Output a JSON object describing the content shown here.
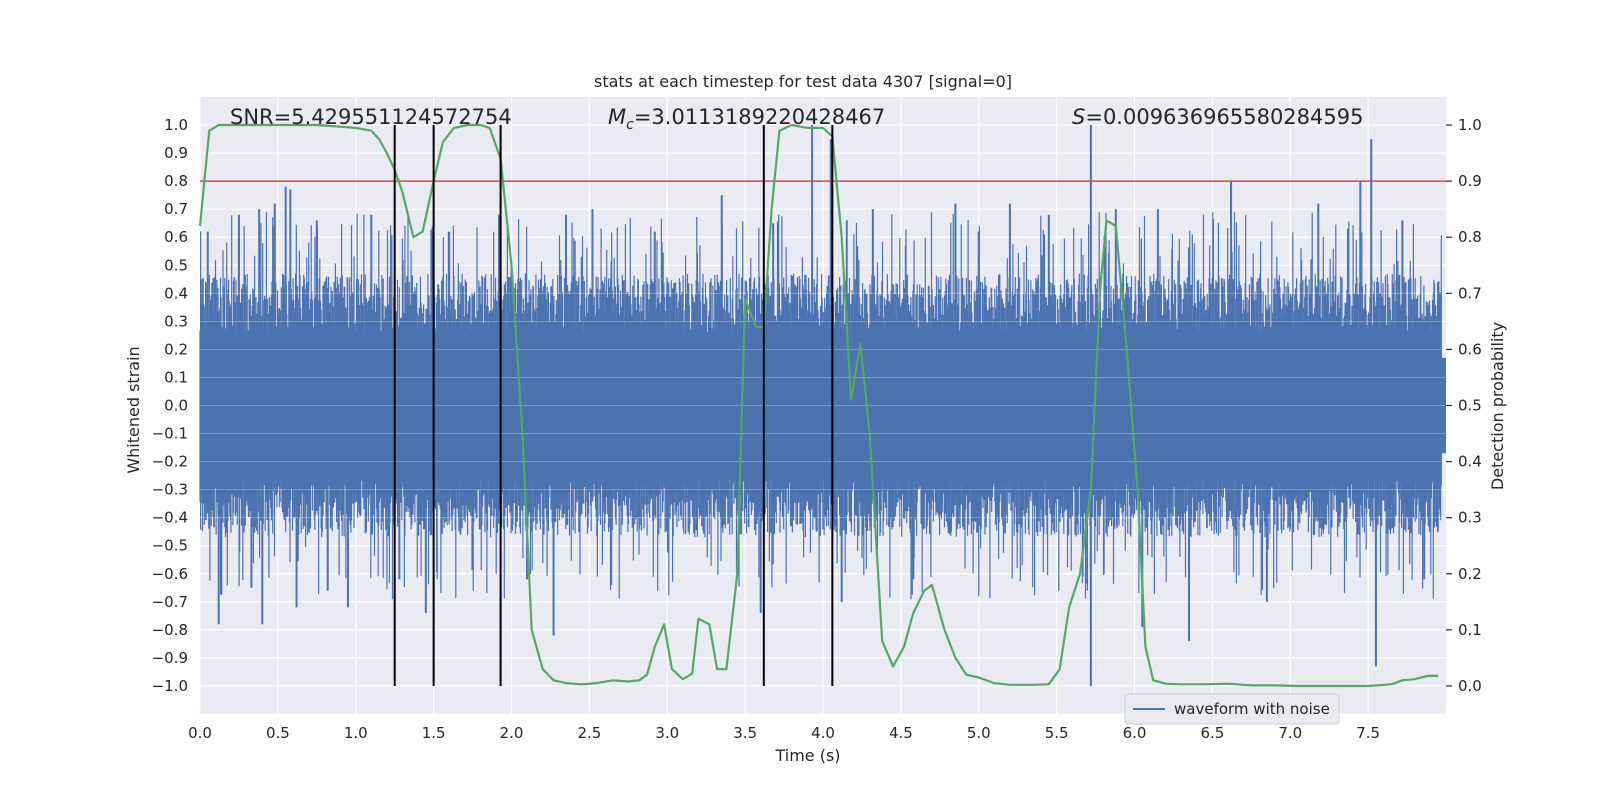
{
  "chart_data": {
    "type": "line",
    "title": "stats at each timestep for test data 4307 [signal=0]",
    "xlabel": "Time (s)",
    "ylabel": "Whitened strain",
    "ylabel_right": "Detection probability",
    "xlim": [
      0.0,
      8.0
    ],
    "ylim": [
      -1.1,
      1.1
    ],
    "ylim_right": [
      -0.05,
      1.05
    ],
    "x_ticks": [
      0.0,
      0.5,
      1.0,
      1.5,
      2.0,
      2.5,
      3.0,
      3.5,
      4.0,
      4.5,
      5.0,
      5.5,
      6.0,
      6.5,
      7.0,
      7.5
    ],
    "x_tick_labels": [
      "0.0",
      "0.5",
      "1.0",
      "1.5",
      "2.0",
      "2.5",
      "3.0",
      "3.5",
      "4.0",
      "4.5",
      "5.0",
      "5.5",
      "6.0",
      "6.5",
      "7.0",
      "7.5"
    ],
    "y_ticks": [
      1.0,
      0.9,
      0.8,
      0.7,
      0.6,
      0.5,
      0.4,
      0.3,
      0.2,
      0.1,
      0.0,
      -0.1,
      -0.2,
      -0.3,
      -0.4,
      -0.5,
      -0.6,
      -0.7,
      -0.8,
      -0.9,
      -1.0
    ],
    "y_tick_labels": [
      "1.0",
      "0.9",
      "0.8",
      "0.7",
      "0.6",
      "0.5",
      "0.4",
      "0.3",
      "0.2",
      "0.1",
      "0.0",
      "−0.1",
      "−0.2",
      "−0.3",
      "−0.4",
      "−0.5",
      "−0.6",
      "−0.7",
      "−0.8",
      "−0.9",
      "−1.0"
    ],
    "y_right_ticks": [
      1.0,
      0.9,
      0.8,
      0.7,
      0.6,
      0.5,
      0.4,
      0.3,
      0.2,
      0.1,
      0.0
    ],
    "y_right_tick_labels": [
      "1.0",
      "0.9",
      "0.8",
      "0.7",
      "0.6",
      "0.5",
      "0.4",
      "0.3",
      "0.2",
      "0.1",
      "0.0"
    ],
    "grid": true,
    "annotations": {
      "snr": "SNR=5.429551124572754",
      "mc_symbol": "M",
      "mc_sub": "c",
      "mc_value": "=3.0113189220428467",
      "s_symbol": "S",
      "s_value": "=0.009636965580284595"
    },
    "threshold": {
      "axis": "right",
      "value": 0.9,
      "color": "#c44e52"
    },
    "vertical_markers": [
      1.25,
      1.5,
      1.93,
      3.62,
      4.06
    ],
    "legend": {
      "label": "waveform with noise",
      "location": "lower-right"
    },
    "waveform": {
      "name": "waveform with noise",
      "color": "#4c72b0",
      "typical_envelope": 0.42,
      "outliers": [
        [
          0.05,
          0.62
        ],
        [
          0.12,
          -0.78
        ],
        [
          0.25,
          0.68
        ],
        [
          0.33,
          -0.65
        ],
        [
          0.38,
          0.7
        ],
        [
          0.4,
          -0.78
        ],
        [
          0.48,
          0.72
        ],
        [
          0.55,
          0.78
        ],
        [
          0.58,
          0.77
        ],
        [
          0.62,
          -0.72
        ],
        [
          0.75,
          0.66
        ],
        [
          0.82,
          -0.66
        ],
        [
          0.95,
          -0.72
        ],
        [
          1.1,
          0.68
        ],
        [
          1.28,
          -0.62
        ],
        [
          1.45,
          -0.74
        ],
        [
          1.6,
          0.62
        ],
        [
          1.92,
          0.68
        ],
        [
          2.1,
          -0.62
        ],
        [
          2.27,
          -0.82
        ],
        [
          2.35,
          0.68
        ],
        [
          2.52,
          0.7
        ],
        [
          2.64,
          -0.64
        ],
        [
          2.92,
          0.62
        ],
        [
          3.35,
          0.75
        ],
        [
          3.6,
          -0.74
        ],
        [
          3.68,
          0.65
        ],
        [
          3.93,
          1.0
        ],
        [
          4.05,
          0.95
        ],
        [
          4.12,
          -0.7
        ],
        [
          4.32,
          0.7
        ],
        [
          4.58,
          -0.62
        ],
        [
          4.85,
          0.72
        ],
        [
          5.0,
          0.62
        ],
        [
          5.2,
          0.72
        ],
        [
          5.45,
          0.68
        ],
        [
          5.72,
          1.0
        ],
        [
          5.72,
          -1.0
        ],
        [
          5.88,
          0.7
        ],
        [
          6.05,
          -0.79
        ],
        [
          6.15,
          0.7
        ],
        [
          6.35,
          -0.84
        ],
        [
          6.62,
          0.8
        ],
        [
          6.85,
          -0.7
        ],
        [
          7.18,
          0.72
        ],
        [
          7.45,
          0.8
        ],
        [
          7.52,
          0.95
        ],
        [
          7.55,
          -0.93
        ],
        [
          7.72,
          0.66
        ],
        [
          7.86,
          -0.62
        ]
      ]
    },
    "detection_probability": {
      "name": "Detection probability",
      "color": "#55a868",
      "axis": "right",
      "points": [
        [
          0.0,
          0.82
        ],
        [
          0.06,
          0.99
        ],
        [
          0.12,
          1.0
        ],
        [
          0.3,
          1.0
        ],
        [
          0.5,
          1.0
        ],
        [
          0.75,
          1.0
        ],
        [
          1.0,
          0.995
        ],
        [
          1.1,
          0.99
        ],
        [
          1.15,
          0.975
        ],
        [
          1.2,
          0.95
        ],
        [
          1.25,
          0.92
        ],
        [
          1.3,
          0.88
        ],
        [
          1.37,
          0.8
        ],
        [
          1.43,
          0.81
        ],
        [
          1.5,
          0.9
        ],
        [
          1.56,
          0.97
        ],
        [
          1.63,
          0.995
        ],
        [
          1.72,
          1.0
        ],
        [
          1.8,
          1.0
        ],
        [
          1.86,
          0.995
        ],
        [
          1.93,
          0.94
        ],
        [
          2.0,
          0.75
        ],
        [
          2.07,
          0.45
        ],
        [
          2.13,
          0.1
        ],
        [
          2.2,
          0.03
        ],
        [
          2.27,
          0.01
        ],
        [
          2.35,
          0.005
        ],
        [
          2.45,
          0.003
        ],
        [
          2.55,
          0.005
        ],
        [
          2.65,
          0.01
        ],
        [
          2.75,
          0.008
        ],
        [
          2.82,
          0.01
        ],
        [
          2.87,
          0.02
        ],
        [
          2.92,
          0.07
        ],
        [
          2.98,
          0.11
        ],
        [
          3.03,
          0.03
        ],
        [
          3.1,
          0.012
        ],
        [
          3.16,
          0.022
        ],
        [
          3.2,
          0.12
        ],
        [
          3.27,
          0.11
        ],
        [
          3.32,
          0.03
        ],
        [
          3.38,
          0.03
        ],
        [
          3.45,
          0.2
        ],
        [
          3.5,
          0.69
        ],
        [
          3.57,
          0.64
        ],
        [
          3.62,
          0.64
        ],
        [
          3.67,
          0.85
        ],
        [
          3.72,
          0.99
        ],
        [
          3.8,
          1.0
        ],
        [
          3.9,
          0.995
        ],
        [
          4.0,
          0.995
        ],
        [
          4.06,
          0.98
        ],
        [
          4.12,
          0.8
        ],
        [
          4.18,
          0.51
        ],
        [
          4.24,
          0.61
        ],
        [
          4.3,
          0.45
        ],
        [
          4.38,
          0.08
        ],
        [
          4.45,
          0.035
        ],
        [
          4.52,
          0.07
        ],
        [
          4.58,
          0.13
        ],
        [
          4.65,
          0.17
        ],
        [
          4.7,
          0.18
        ],
        [
          4.78,
          0.1
        ],
        [
          4.85,
          0.05
        ],
        [
          4.92,
          0.02
        ],
        [
          5.0,
          0.015
        ],
        [
          5.1,
          0.005
        ],
        [
          5.2,
          0.002
        ],
        [
          5.35,
          0.002
        ],
        [
          5.45,
          0.003
        ],
        [
          5.52,
          0.03
        ],
        [
          5.58,
          0.14
        ],
        [
          5.65,
          0.2
        ],
        [
          5.72,
          0.35
        ],
        [
          5.78,
          0.71
        ],
        [
          5.82,
          0.83
        ],
        [
          5.88,
          0.82
        ],
        [
          5.95,
          0.6
        ],
        [
          6.02,
          0.35
        ],
        [
          6.07,
          0.07
        ],
        [
          6.12,
          0.01
        ],
        [
          6.2,
          0.004
        ],
        [
          6.3,
          0.003
        ],
        [
          6.45,
          0.003
        ],
        [
          6.6,
          0.004
        ],
        [
          6.75,
          0.001
        ],
        [
          6.9,
          0.001
        ],
        [
          7.05,
          0.0
        ],
        [
          7.2,
          0.0
        ],
        [
          7.35,
          0.0
        ],
        [
          7.5,
          0.0
        ],
        [
          7.65,
          0.003
        ],
        [
          7.72,
          0.01
        ],
        [
          7.8,
          0.012
        ],
        [
          7.88,
          0.018
        ],
        [
          7.95,
          0.018
        ]
      ]
    }
  }
}
